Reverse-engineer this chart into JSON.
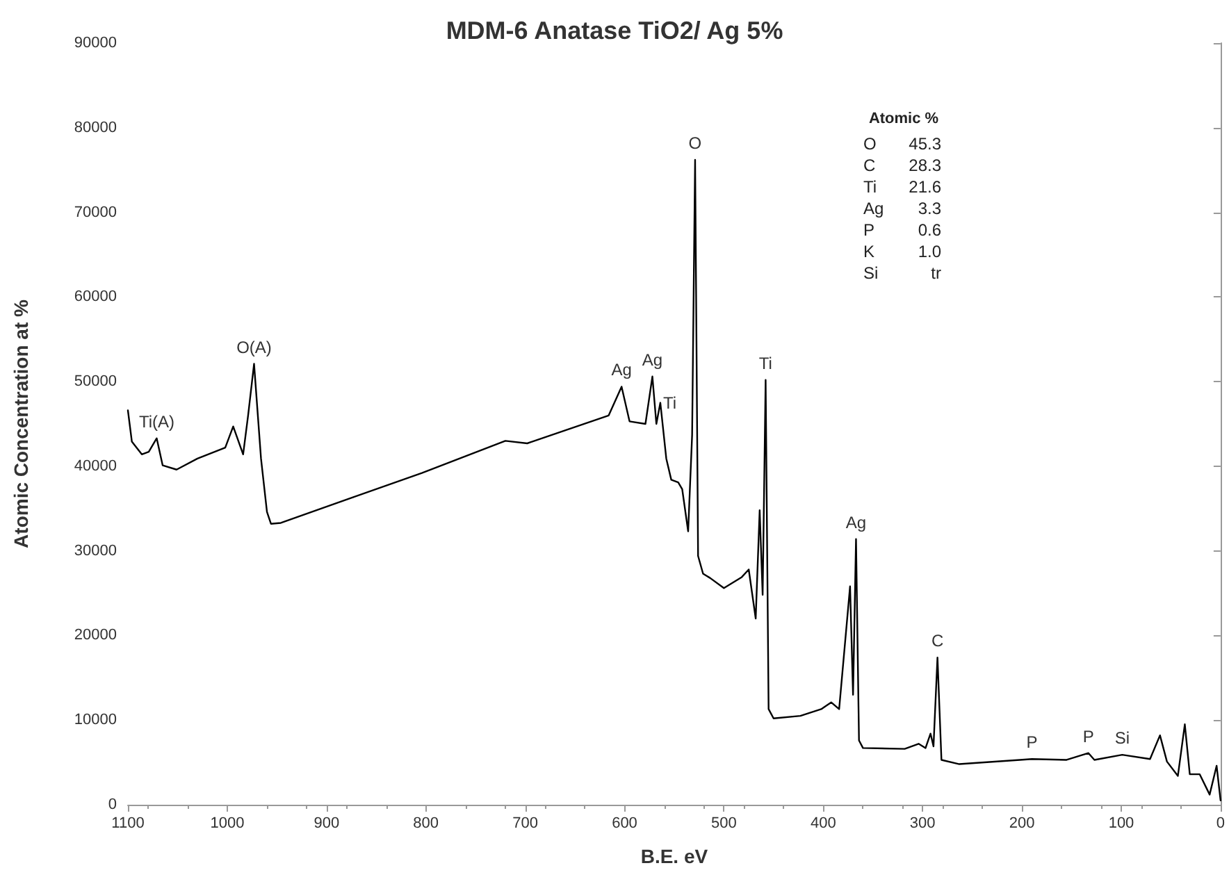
{
  "chart_data": {
    "type": "line",
    "title": "MDM-6 Anatase TiO2/ Ag 5%",
    "xlabel": "B.E. eV",
    "ylabel": "Atomic Concentration at %",
    "x": [
      1100,
      1096,
      1086,
      1079,
      1071,
      1065,
      1051,
      1030,
      1002,
      994,
      984,
      979,
      973,
      966,
      960,
      956,
      946,
      874,
      804,
      720,
      698,
      616,
      603,
      595,
      579,
      572,
      568,
      564,
      558,
      553,
      546,
      542,
      536,
      532,
      529,
      526,
      521,
      514,
      500,
      482,
      475,
      468,
      464,
      461,
      458,
      455,
      450,
      423,
      402,
      392,
      384,
      373,
      370,
      367,
      364,
      360,
      318,
      304,
      297,
      292,
      289,
      285,
      281,
      263,
      202,
      190,
      155,
      133,
      127,
      99,
      71,
      61,
      54,
      43,
      36,
      31,
      21,
      11,
      4,
      0
    ],
    "values": [
      46600,
      42900,
      41400,
      41700,
      43300,
      40100,
      39600,
      40900,
      42200,
      44700,
      41400,
      46000,
      52100,
      40900,
      34600,
      33200,
      33300,
      36300,
      39200,
      43000,
      42700,
      46000,
      49400,
      45300,
      45000,
      50600,
      45000,
      47500,
      40900,
      38400,
      38100,
      37300,
      32300,
      43700,
      76200,
      29400,
      27300,
      26800,
      25600,
      26900,
      27800,
      22000,
      34800,
      24800,
      50200,
      11300,
      10200,
      10500,
      11300,
      12100,
      11300,
      25800,
      13000,
      31400,
      7600,
      6700,
      6600,
      7200,
      6700,
      8400,
      6900,
      17400,
      5300,
      4800,
      5300,
      5400,
      5300,
      6100,
      5300,
      5900,
      5400,
      8200,
      5100,
      3400,
      9500,
      3600,
      3600,
      1200,
      4600,
      500
    ],
    "color": "#000000",
    "marker": "none",
    "line_style": "solid",
    "xlim": [
      1100,
      0
    ],
    "xticks": [
      1100,
      1000,
      900,
      800,
      700,
      600,
      500,
      400,
      300,
      200,
      100,
      0
    ],
    "ylim": [
      0,
      90000
    ],
    "yticks": [
      0,
      10000,
      20000,
      30000,
      40000,
      50000,
      60000,
      70000,
      80000,
      90000
    ],
    "annotations": [
      {
        "text": "Ti(A)",
        "x": 1071,
        "y": 43300
      },
      {
        "text": "O(A)",
        "x": 973,
        "y": 52100
      },
      {
        "text": "Ag",
        "x": 603,
        "y": 49400
      },
      {
        "text": "Ag",
        "x": 572,
        "y": 50600
      },
      {
        "text": "Ti",
        "x": 564,
        "y": 47500
      },
      {
        "text": "O",
        "x": 529,
        "y": 76200
      },
      {
        "text": "Ti",
        "x": 458,
        "y": 50200
      },
      {
        "text": "Ag",
        "x": 367,
        "y": 31400
      },
      {
        "text": "C",
        "x": 285,
        "y": 17400
      },
      {
        "text": "P",
        "x": 190,
        "y": 5400
      },
      {
        "text": "P",
        "x": 133,
        "y": 6100
      },
      {
        "text": "Si",
        "x": 99,
        "y": 5900
      },
      "Atomic %",
      "O 45.3",
      "C 28.3",
      "Ti 21.6",
      "Ag 3.3",
      "P 0.6",
      "K 1.0",
      "Si tr"
    ]
  }
}
